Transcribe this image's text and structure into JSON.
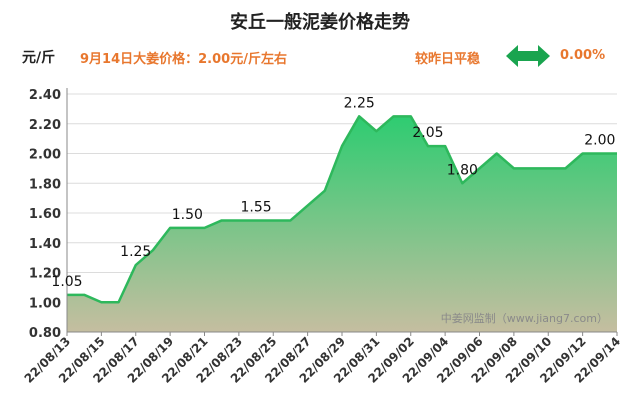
{
  "header": {
    "title": "安丘一般泥姜价格走势",
    "unit": "元/斤",
    "price_note": "9月14日大姜价格：2.00元/斤左右",
    "compare_label": "较昨日平稳",
    "change_value": "0.00%"
  },
  "colors": {
    "line": "#2eb85c",
    "fill_top": "#2ecc71",
    "fill_bottom": "#c5bea0",
    "accent_text": "#e8772e",
    "arrow": "#1aa44f"
  },
  "icons": {
    "compare": "double-arrow-icon"
  },
  "chart_data": {
    "type": "area",
    "watermark": "中姜网监制（www.jiang7.com）",
    "ylim": [
      0.8,
      2.4
    ],
    "yticks": [
      "0.80",
      "1.00",
      "1.20",
      "1.40",
      "1.60",
      "1.80",
      "2.00",
      "2.20",
      "2.40"
    ],
    "xticks": [
      "22/08/13",
      "22/08/15",
      "22/08/17",
      "22/08/19",
      "22/08/21",
      "22/08/23",
      "22/08/25",
      "22/08/27",
      "22/08/29",
      "22/08/31",
      "22/09/02",
      "22/09/04",
      "22/09/06",
      "22/09/08",
      "22/09/10",
      "22/09/12",
      "22/09/14"
    ],
    "x": [
      "22/08/13",
      "22/08/14",
      "22/08/15",
      "22/08/16",
      "22/08/17",
      "22/08/18",
      "22/08/19",
      "22/08/20",
      "22/08/21",
      "22/08/22",
      "22/08/23",
      "22/08/24",
      "22/08/25",
      "22/08/26",
      "22/08/27",
      "22/08/28",
      "22/08/29",
      "22/08/30",
      "22/08/31",
      "22/09/01",
      "22/09/02",
      "22/09/03",
      "22/09/04",
      "22/09/05",
      "22/09/06",
      "22/09/07",
      "22/09/08",
      "22/09/09",
      "22/09/10",
      "22/09/11",
      "22/09/12",
      "22/09/13",
      "22/09/14"
    ],
    "values": [
      1.05,
      1.05,
      1.0,
      1.0,
      1.25,
      1.35,
      1.5,
      1.5,
      1.5,
      1.55,
      1.55,
      1.55,
      1.55,
      1.55,
      1.65,
      1.75,
      2.05,
      2.25,
      2.15,
      2.25,
      2.25,
      2.05,
      2.05,
      1.8,
      1.9,
      2.0,
      1.9,
      1.9,
      1.9,
      1.9,
      2.0,
      2.0,
      2.0
    ],
    "data_labels": [
      {
        "x": "22/08/13",
        "text": "1.05"
      },
      {
        "x": "22/08/17",
        "text": "1.25"
      },
      {
        "x": "22/08/20",
        "text": "1.50"
      },
      {
        "x": "22/08/24",
        "text": "1.55"
      },
      {
        "x": "22/08/30",
        "text": "2.25"
      },
      {
        "x": "22/09/03",
        "text": "2.05"
      },
      {
        "x": "22/09/05",
        "text": "1.80"
      },
      {
        "x": "22/09/13",
        "text": "2.00"
      }
    ]
  }
}
